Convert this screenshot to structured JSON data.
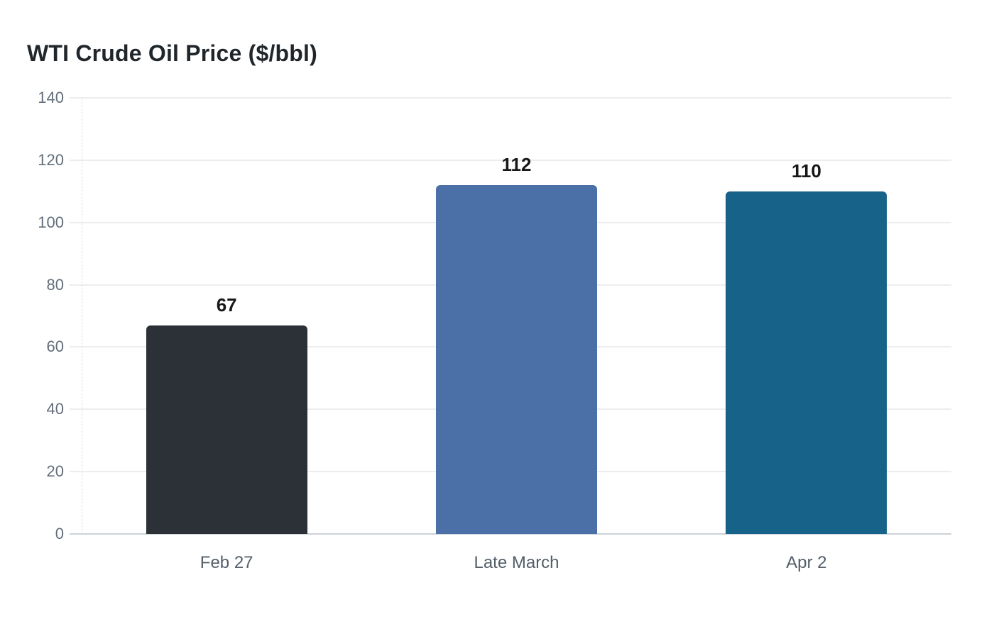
{
  "page": {
    "background": "#ffffff"
  },
  "chart_data": {
    "type": "bar",
    "title": "WTI Crude Oil Price ($/bbl)",
    "categories": [
      "Feb 27",
      "Late March",
      "Apr 2"
    ],
    "values": [
      67,
      112,
      110
    ],
    "value_labels": [
      "67",
      "112",
      "110"
    ],
    "bar_colors": [
      "#2b3137",
      "#4b70a8",
      "#176289"
    ],
    "xlabel": "",
    "ylabel": "",
    "ylim": [
      0,
      140
    ],
    "yticks": [
      0,
      20,
      40,
      60,
      80,
      100,
      120,
      140
    ],
    "grid": true,
    "legend": false
  },
  "style": {
    "title_color": "#21262b",
    "grid_color": "#ededed",
    "axis_line_color": "#ccd2d8",
    "y_tick_label_color": "#636e79",
    "x_tick_label_color": "#545e69",
    "value_label_color": "#16181a"
  }
}
